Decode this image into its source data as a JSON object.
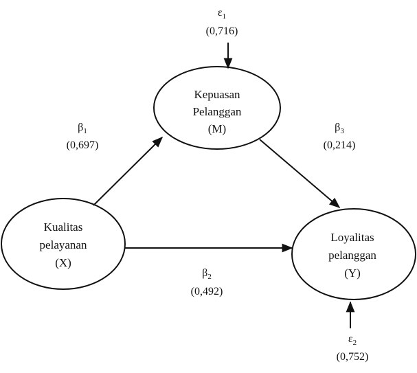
{
  "nodes": {
    "mediator": {
      "lines": [
        "Kepuasan",
        "Pelanggan",
        "(M)"
      ]
    },
    "independent": {
      "lines": [
        "Kualitas",
        "pelayanan",
        "(X)"
      ]
    },
    "dependent": {
      "lines": [
        "Loyalitas",
        "pelanggan",
        "(Y)"
      ]
    }
  },
  "paths": {
    "beta1": {
      "symbol": "β",
      "subscript": "1",
      "value": "(0,697)"
    },
    "beta2": {
      "symbol": "β",
      "subscript": "2",
      "value": "(0,492)"
    },
    "beta3": {
      "symbol": "β",
      "subscript": "3",
      "value": "(0,214)"
    }
  },
  "errors": {
    "e1": {
      "symbol": "ε",
      "subscript": "1",
      "value": "(0,716)"
    },
    "e2": {
      "symbol": "ε",
      "subscript": "2",
      "value": "(0,752)"
    }
  }
}
